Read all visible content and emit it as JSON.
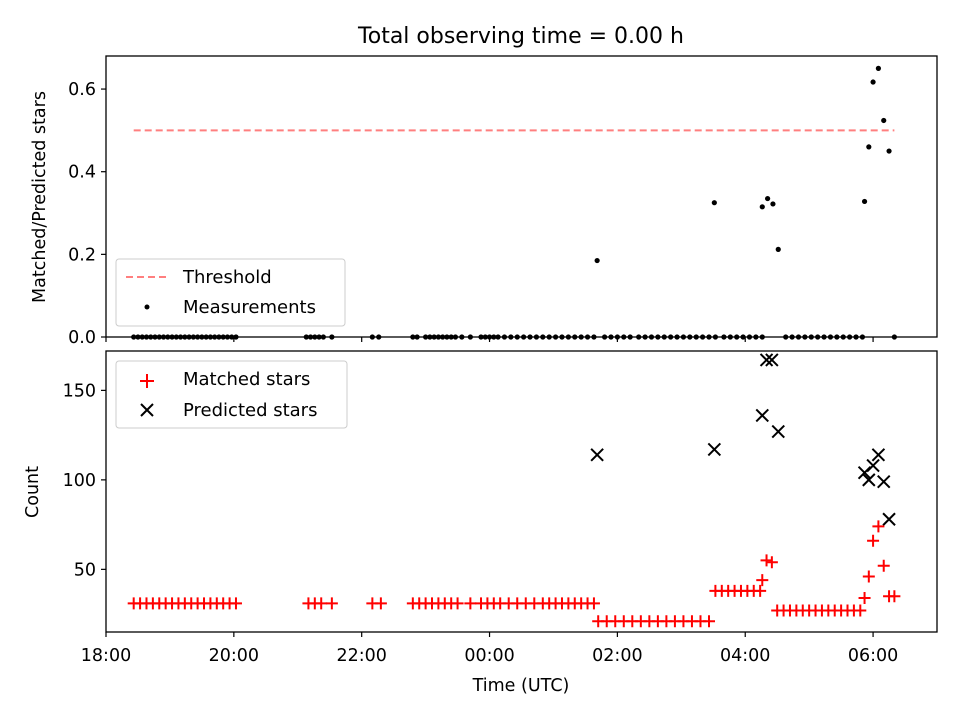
{
  "chart_data": [
    {
      "type": "scatter",
      "title": "Total observing time = 0.00 h",
      "xlabel": "",
      "ylabel": "Matched/Predicted stars",
      "xlim": [
        "18:00",
        "07:00"
      ],
      "ylim": [
        0.0,
        0.68
      ],
      "yticks": [
        "0.0",
        "0.2",
        "0.4",
        "0.6"
      ],
      "legend_position": "lower-left",
      "threshold": {
        "name": "Threshold",
        "value": 0.5,
        "x_start": "18:26",
        "x_end": "06:20",
        "color": "#ff7f7f"
      },
      "series": [
        {
          "name": "Measurements",
          "color": "#000000",
          "points": [
            [
              "18:26",
              0
            ],
            [
              "18:30",
              0
            ],
            [
              "18:34",
              0
            ],
            [
              "18:38",
              0
            ],
            [
              "18:42",
              0
            ],
            [
              "18:46",
              0
            ],
            [
              "18:50",
              0
            ],
            [
              "18:54",
              0
            ],
            [
              "18:58",
              0
            ],
            [
              "19:02",
              0
            ],
            [
              "19:06",
              0
            ],
            [
              "19:10",
              0
            ],
            [
              "19:14",
              0
            ],
            [
              "19:18",
              0
            ],
            [
              "19:22",
              0
            ],
            [
              "19:26",
              0
            ],
            [
              "19:30",
              0
            ],
            [
              "19:34",
              0
            ],
            [
              "19:38",
              0
            ],
            [
              "19:42",
              0
            ],
            [
              "19:46",
              0
            ],
            [
              "19:50",
              0
            ],
            [
              "19:54",
              0
            ],
            [
              "19:58",
              0
            ],
            [
              "20:02",
              0
            ],
            [
              "21:08",
              0
            ],
            [
              "21:12",
              0
            ],
            [
              "21:16",
              0
            ],
            [
              "21:20",
              0
            ],
            [
              "21:24",
              0
            ],
            [
              "21:32",
              0
            ],
            [
              "22:10",
              0
            ],
            [
              "22:16",
              0
            ],
            [
              "22:48",
              0
            ],
            [
              "22:52",
              0
            ],
            [
              "23:00",
              0
            ],
            [
              "23:04",
              0
            ],
            [
              "23:08",
              0
            ],
            [
              "23:12",
              0
            ],
            [
              "23:16",
              0
            ],
            [
              "23:20",
              0
            ],
            [
              "23:24",
              0
            ],
            [
              "23:28",
              0
            ],
            [
              "23:34",
              0
            ],
            [
              "23:42",
              0
            ],
            [
              "23:52",
              0
            ],
            [
              "23:56",
              0
            ],
            [
              "00:00",
              0
            ],
            [
              "00:04",
              0
            ],
            [
              "00:08",
              0
            ],
            [
              "00:14",
              0
            ],
            [
              "00:20",
              0
            ],
            [
              "00:26",
              0
            ],
            [
              "00:32",
              0
            ],
            [
              "00:38",
              0
            ],
            [
              "00:44",
              0
            ],
            [
              "00:50",
              0
            ],
            [
              "00:56",
              0
            ],
            [
              "01:02",
              0
            ],
            [
              "01:08",
              0
            ],
            [
              "01:14",
              0
            ],
            [
              "01:20",
              0
            ],
            [
              "01:26",
              0
            ],
            [
              "01:32",
              0
            ],
            [
              "01:38",
              0
            ],
            [
              "01:41",
              0.185
            ],
            [
              "01:48",
              0
            ],
            [
              "01:54",
              0
            ],
            [
              "02:00",
              0
            ],
            [
              "02:06",
              0
            ],
            [
              "02:12",
              0
            ],
            [
              "02:20",
              0
            ],
            [
              "02:26",
              0
            ],
            [
              "02:32",
              0
            ],
            [
              "02:38",
              0
            ],
            [
              "02:44",
              0
            ],
            [
              "02:50",
              0
            ],
            [
              "02:56",
              0
            ],
            [
              "03:02",
              0
            ],
            [
              "03:08",
              0
            ],
            [
              "03:14",
              0
            ],
            [
              "03:20",
              0
            ],
            [
              "03:26",
              0
            ],
            [
              "03:32",
              0
            ],
            [
              "03:31",
              0.325
            ],
            [
              "03:40",
              0
            ],
            [
              "03:46",
              0
            ],
            [
              "03:52",
              0
            ],
            [
              "03:58",
              0
            ],
            [
              "04:04",
              0
            ],
            [
              "04:10",
              0
            ],
            [
              "04:16",
              0
            ],
            [
              "04:16",
              0.315
            ],
            [
              "04:21",
              0.335
            ],
            [
              "04:26",
              0.322
            ],
            [
              "04:31",
              0.212
            ],
            [
              "04:38",
              0
            ],
            [
              "04:44",
              0
            ],
            [
              "04:50",
              0
            ],
            [
              "04:56",
              0
            ],
            [
              "05:02",
              0
            ],
            [
              "05:08",
              0
            ],
            [
              "05:14",
              0
            ],
            [
              "05:20",
              0
            ],
            [
              "05:26",
              0
            ],
            [
              "05:32",
              0
            ],
            [
              "05:38",
              0
            ],
            [
              "05:44",
              0
            ],
            [
              "05:50",
              0
            ],
            [
              "05:52",
              0.328
            ],
            [
              "05:56",
              0.46
            ],
            [
              "06:00",
              0.617
            ],
            [
              "06:05",
              0.65
            ],
            [
              "06:10",
              0.524
            ],
            [
              "06:15",
              0.45
            ],
            [
              "06:20",
              0
            ]
          ]
        }
      ]
    },
    {
      "type": "scatter",
      "title": "",
      "xlabel": "Time (UTC)",
      "ylabel": "Count",
      "xlim": [
        "18:00",
        "07:00"
      ],
      "xticks": [
        "18:00",
        "20:00",
        "22:00",
        "00:00",
        "02:00",
        "04:00",
        "06:00"
      ],
      "ylim": [
        15,
        172
      ],
      "yticks": [
        "50",
        "100",
        "150"
      ],
      "legend_position": "upper-left",
      "series": [
        {
          "name": "Matched stars",
          "marker": "plus",
          "color": "#ff0000",
          "points": [
            [
              "18:26",
              31
            ],
            [
              "18:32",
              31
            ],
            [
              "18:38",
              31
            ],
            [
              "18:44",
              31
            ],
            [
              "18:50",
              31
            ],
            [
              "18:56",
              31
            ],
            [
              "19:02",
              31
            ],
            [
              "19:08",
              31
            ],
            [
              "19:14",
              31
            ],
            [
              "19:20",
              31
            ],
            [
              "19:26",
              31
            ],
            [
              "19:32",
              31
            ],
            [
              "19:38",
              31
            ],
            [
              "19:44",
              31
            ],
            [
              "19:50",
              31
            ],
            [
              "19:56",
              31
            ],
            [
              "20:02",
              31
            ],
            [
              "21:10",
              31
            ],
            [
              "21:16",
              31
            ],
            [
              "21:22",
              31
            ],
            [
              "21:32",
              31
            ],
            [
              "22:10",
              31
            ],
            [
              "22:18",
              31
            ],
            [
              "22:48",
              31
            ],
            [
              "22:54",
              31
            ],
            [
              "23:00",
              31
            ],
            [
              "23:06",
              31
            ],
            [
              "23:12",
              31
            ],
            [
              "23:18",
              31
            ],
            [
              "23:24",
              31
            ],
            [
              "23:30",
              31
            ],
            [
              "23:42",
              31
            ],
            [
              "23:52",
              31
            ],
            [
              "23:58",
              31
            ],
            [
              "00:04",
              31
            ],
            [
              "00:10",
              31
            ],
            [
              "00:18",
              31
            ],
            [
              "00:26",
              31
            ],
            [
              "00:34",
              31
            ],
            [
              "00:42",
              31
            ],
            [
              "00:50",
              31
            ],
            [
              "00:56",
              31
            ],
            [
              "01:02",
              31
            ],
            [
              "01:08",
              31
            ],
            [
              "01:14",
              31
            ],
            [
              "01:20",
              31
            ],
            [
              "01:26",
              31
            ],
            [
              "01:32",
              31
            ],
            [
              "01:38",
              31
            ],
            [
              "01:42",
              21
            ],
            [
              "01:50",
              21
            ],
            [
              "01:58",
              21
            ],
            [
              "02:06",
              21
            ],
            [
              "02:14",
              21
            ],
            [
              "02:22",
              21
            ],
            [
              "02:30",
              21
            ],
            [
              "02:38",
              21
            ],
            [
              "02:46",
              21
            ],
            [
              "02:54",
              21
            ],
            [
              "03:02",
              21
            ],
            [
              "03:10",
              21
            ],
            [
              "03:18",
              21
            ],
            [
              "03:26",
              21
            ],
            [
              "03:32",
              38
            ],
            [
              "03:38",
              38
            ],
            [
              "03:44",
              38
            ],
            [
              "03:50",
              38
            ],
            [
              "03:56",
              38
            ],
            [
              "04:02",
              38
            ],
            [
              "04:08",
              38
            ],
            [
              "04:14",
              38
            ],
            [
              "04:16",
              44
            ],
            [
              "04:20",
              55
            ],
            [
              "04:25",
              54
            ],
            [
              "04:30",
              27
            ],
            [
              "04:36",
              27
            ],
            [
              "04:42",
              27
            ],
            [
              "04:48",
              27
            ],
            [
              "04:54",
              27
            ],
            [
              "05:00",
              27
            ],
            [
              "05:06",
              27
            ],
            [
              "05:12",
              27
            ],
            [
              "05:18",
              27
            ],
            [
              "05:24",
              27
            ],
            [
              "05:30",
              27
            ],
            [
              "05:36",
              27
            ],
            [
              "05:42",
              27
            ],
            [
              "05:48",
              27
            ],
            [
              "05:52",
              34
            ],
            [
              "05:56",
              46
            ],
            [
              "06:00",
              66
            ],
            [
              "06:05",
              74
            ],
            [
              "06:10",
              52
            ],
            [
              "06:15",
              35
            ],
            [
              "06:20",
              35
            ]
          ]
        },
        {
          "name": "Predicted stars",
          "marker": "x",
          "color": "#000000",
          "points": [
            [
              "01:41",
              114
            ],
            [
              "03:31",
              117
            ],
            [
              "04:16",
              136
            ],
            [
              "04:20",
              167
            ],
            [
              "04:25",
              167
            ],
            [
              "04:31",
              127
            ],
            [
              "05:52",
              104
            ],
            [
              "05:56",
              100
            ],
            [
              "06:00",
              108
            ],
            [
              "06:05",
              114
            ],
            [
              "06:10",
              99
            ],
            [
              "06:15",
              78
            ]
          ]
        }
      ]
    }
  ]
}
